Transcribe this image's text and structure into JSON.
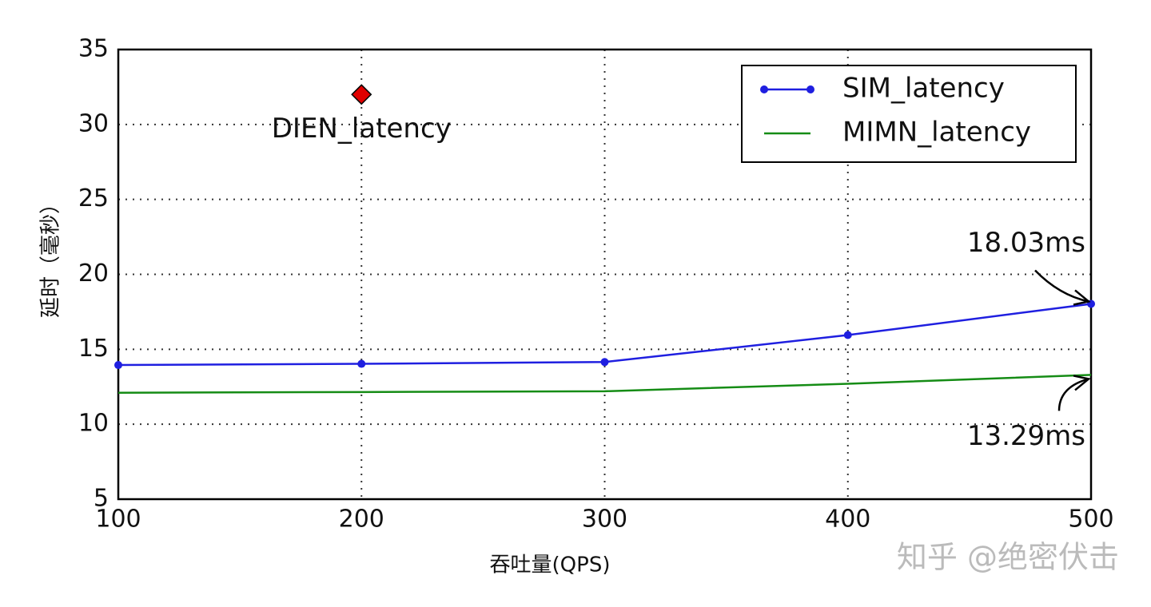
{
  "chart_data": {
    "type": "line",
    "xlabel": "吞吐量(QPS)",
    "ylabel": "延时（毫秒）",
    "x": [
      100,
      200,
      300,
      400,
      500
    ],
    "series": [
      {
        "name": "SIM_latency",
        "color": "#1f1fe0",
        "marker": true,
        "values": [
          13.95,
          14.03,
          14.15,
          15.95,
          18.03
        ]
      },
      {
        "name": "MIMN_latency",
        "color": "#158c15",
        "marker": false,
        "values": [
          12.1,
          12.15,
          12.2,
          12.7,
          13.29
        ]
      }
    ],
    "points": [
      {
        "name": "DIEN_latency",
        "x": 200,
        "y": 32,
        "color": "#e00000"
      }
    ],
    "annotations": [
      {
        "text": "18.03ms",
        "x": 500,
        "y": 18.03
      },
      {
        "text": "13.29ms",
        "x": 500,
        "y": 13.29
      }
    ],
    "xlim": [
      100,
      500
    ],
    "xticks": [
      100,
      200,
      300,
      400,
      500
    ],
    "ylim": [
      5,
      35
    ],
    "yticks": [
      5,
      10,
      15,
      20,
      25,
      30,
      35
    ],
    "grid": true,
    "legend": "upper right",
    "watermark": "知乎 @绝密伏击"
  }
}
